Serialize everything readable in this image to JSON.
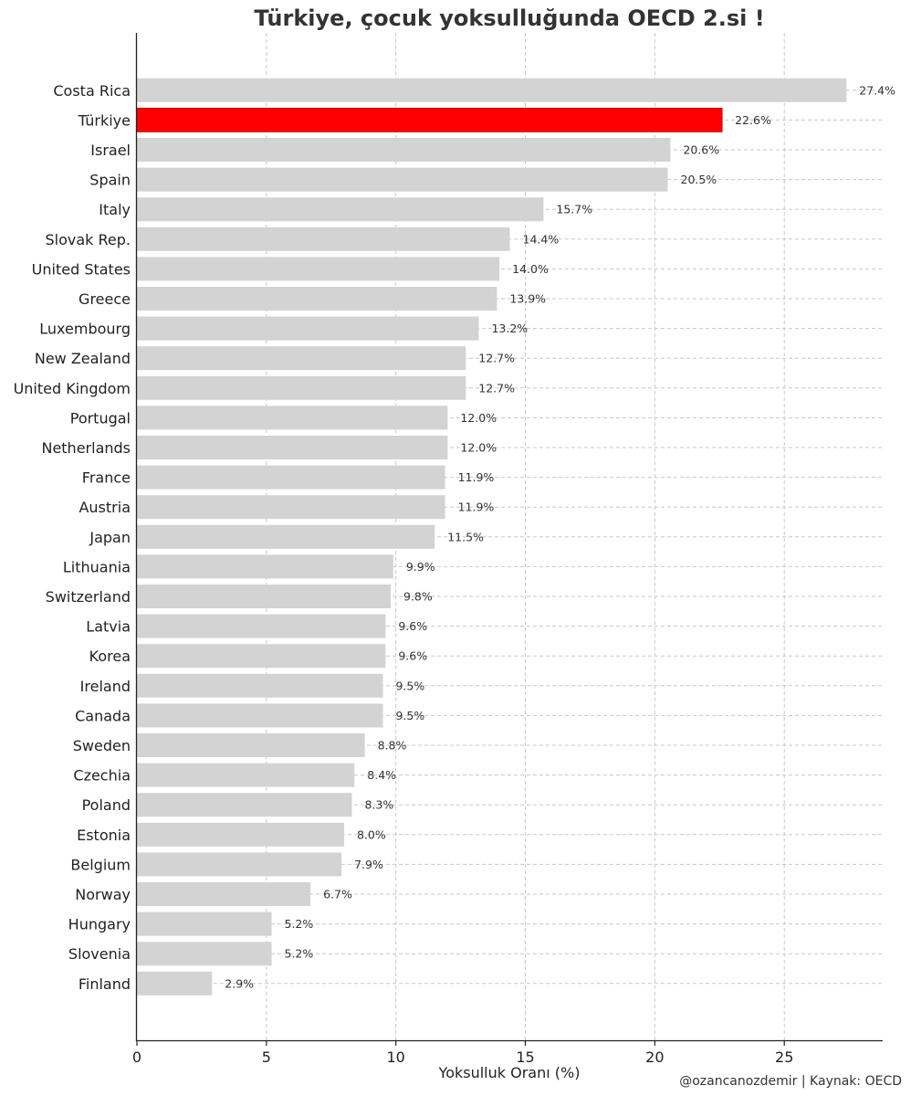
{
  "chart_data": {
    "type": "bar",
    "orientation": "horizontal",
    "title": "Türkiye, çocuk yoksulluğunda OECD 2.si !",
    "xlabel": "Yoksulluk Oranı (%)",
    "ylabel": "",
    "xlim": [
      0,
      28.8
    ],
    "xticks": [
      0,
      5,
      10,
      15,
      20,
      25
    ],
    "grid": true,
    "categories": [
      "Costa Rica",
      "Türkiye",
      "Israel",
      "Spain",
      "Italy",
      "Slovak Rep.",
      "United States",
      "Greece",
      "Luxembourg",
      "New Zealand",
      "United Kingdom",
      "Portugal",
      "Netherlands",
      "France",
      "Austria",
      "Japan",
      "Lithuania",
      "Switzerland",
      "Latvia",
      "Korea",
      "Ireland",
      "Canada",
      "Sweden",
      "Czechia",
      "Poland",
      "Estonia",
      "Belgium",
      "Norway",
      "Hungary",
      "Slovenia",
      "Finland"
    ],
    "values": [
      27.4,
      22.6,
      20.6,
      20.5,
      15.7,
      14.4,
      14.0,
      13.9,
      13.2,
      12.7,
      12.7,
      12.0,
      12.0,
      11.9,
      11.9,
      11.5,
      9.9,
      9.8,
      9.6,
      9.6,
      9.5,
      9.5,
      8.8,
      8.4,
      8.3,
      8.0,
      7.9,
      6.7,
      5.2,
      5.2,
      2.9
    ],
    "value_labels": [
      "27.4%",
      "22.6%",
      "20.6%",
      "20.5%",
      "15.7%",
      "14.4%",
      "14.0%",
      "13.9%",
      "13.2%",
      "12.7%",
      "12.7%",
      "12.0%",
      "12.0%",
      "11.9%",
      "11.9%",
      "11.5%",
      "9.9%",
      "9.8%",
      "9.6%",
      "9.6%",
      "9.5%",
      "9.5%",
      "8.8%",
      "8.4%",
      "8.3%",
      "8.0%",
      "7.9%",
      "6.7%",
      "5.2%",
      "5.2%",
      "2.9%"
    ],
    "highlight_category": "Türkiye",
    "colors": {
      "default": "#d3d3d3",
      "highlight": "#ff0000",
      "grid": "#c8c8c8"
    }
  },
  "credit": "@ozancanozdemir | Kaynak: OECD"
}
